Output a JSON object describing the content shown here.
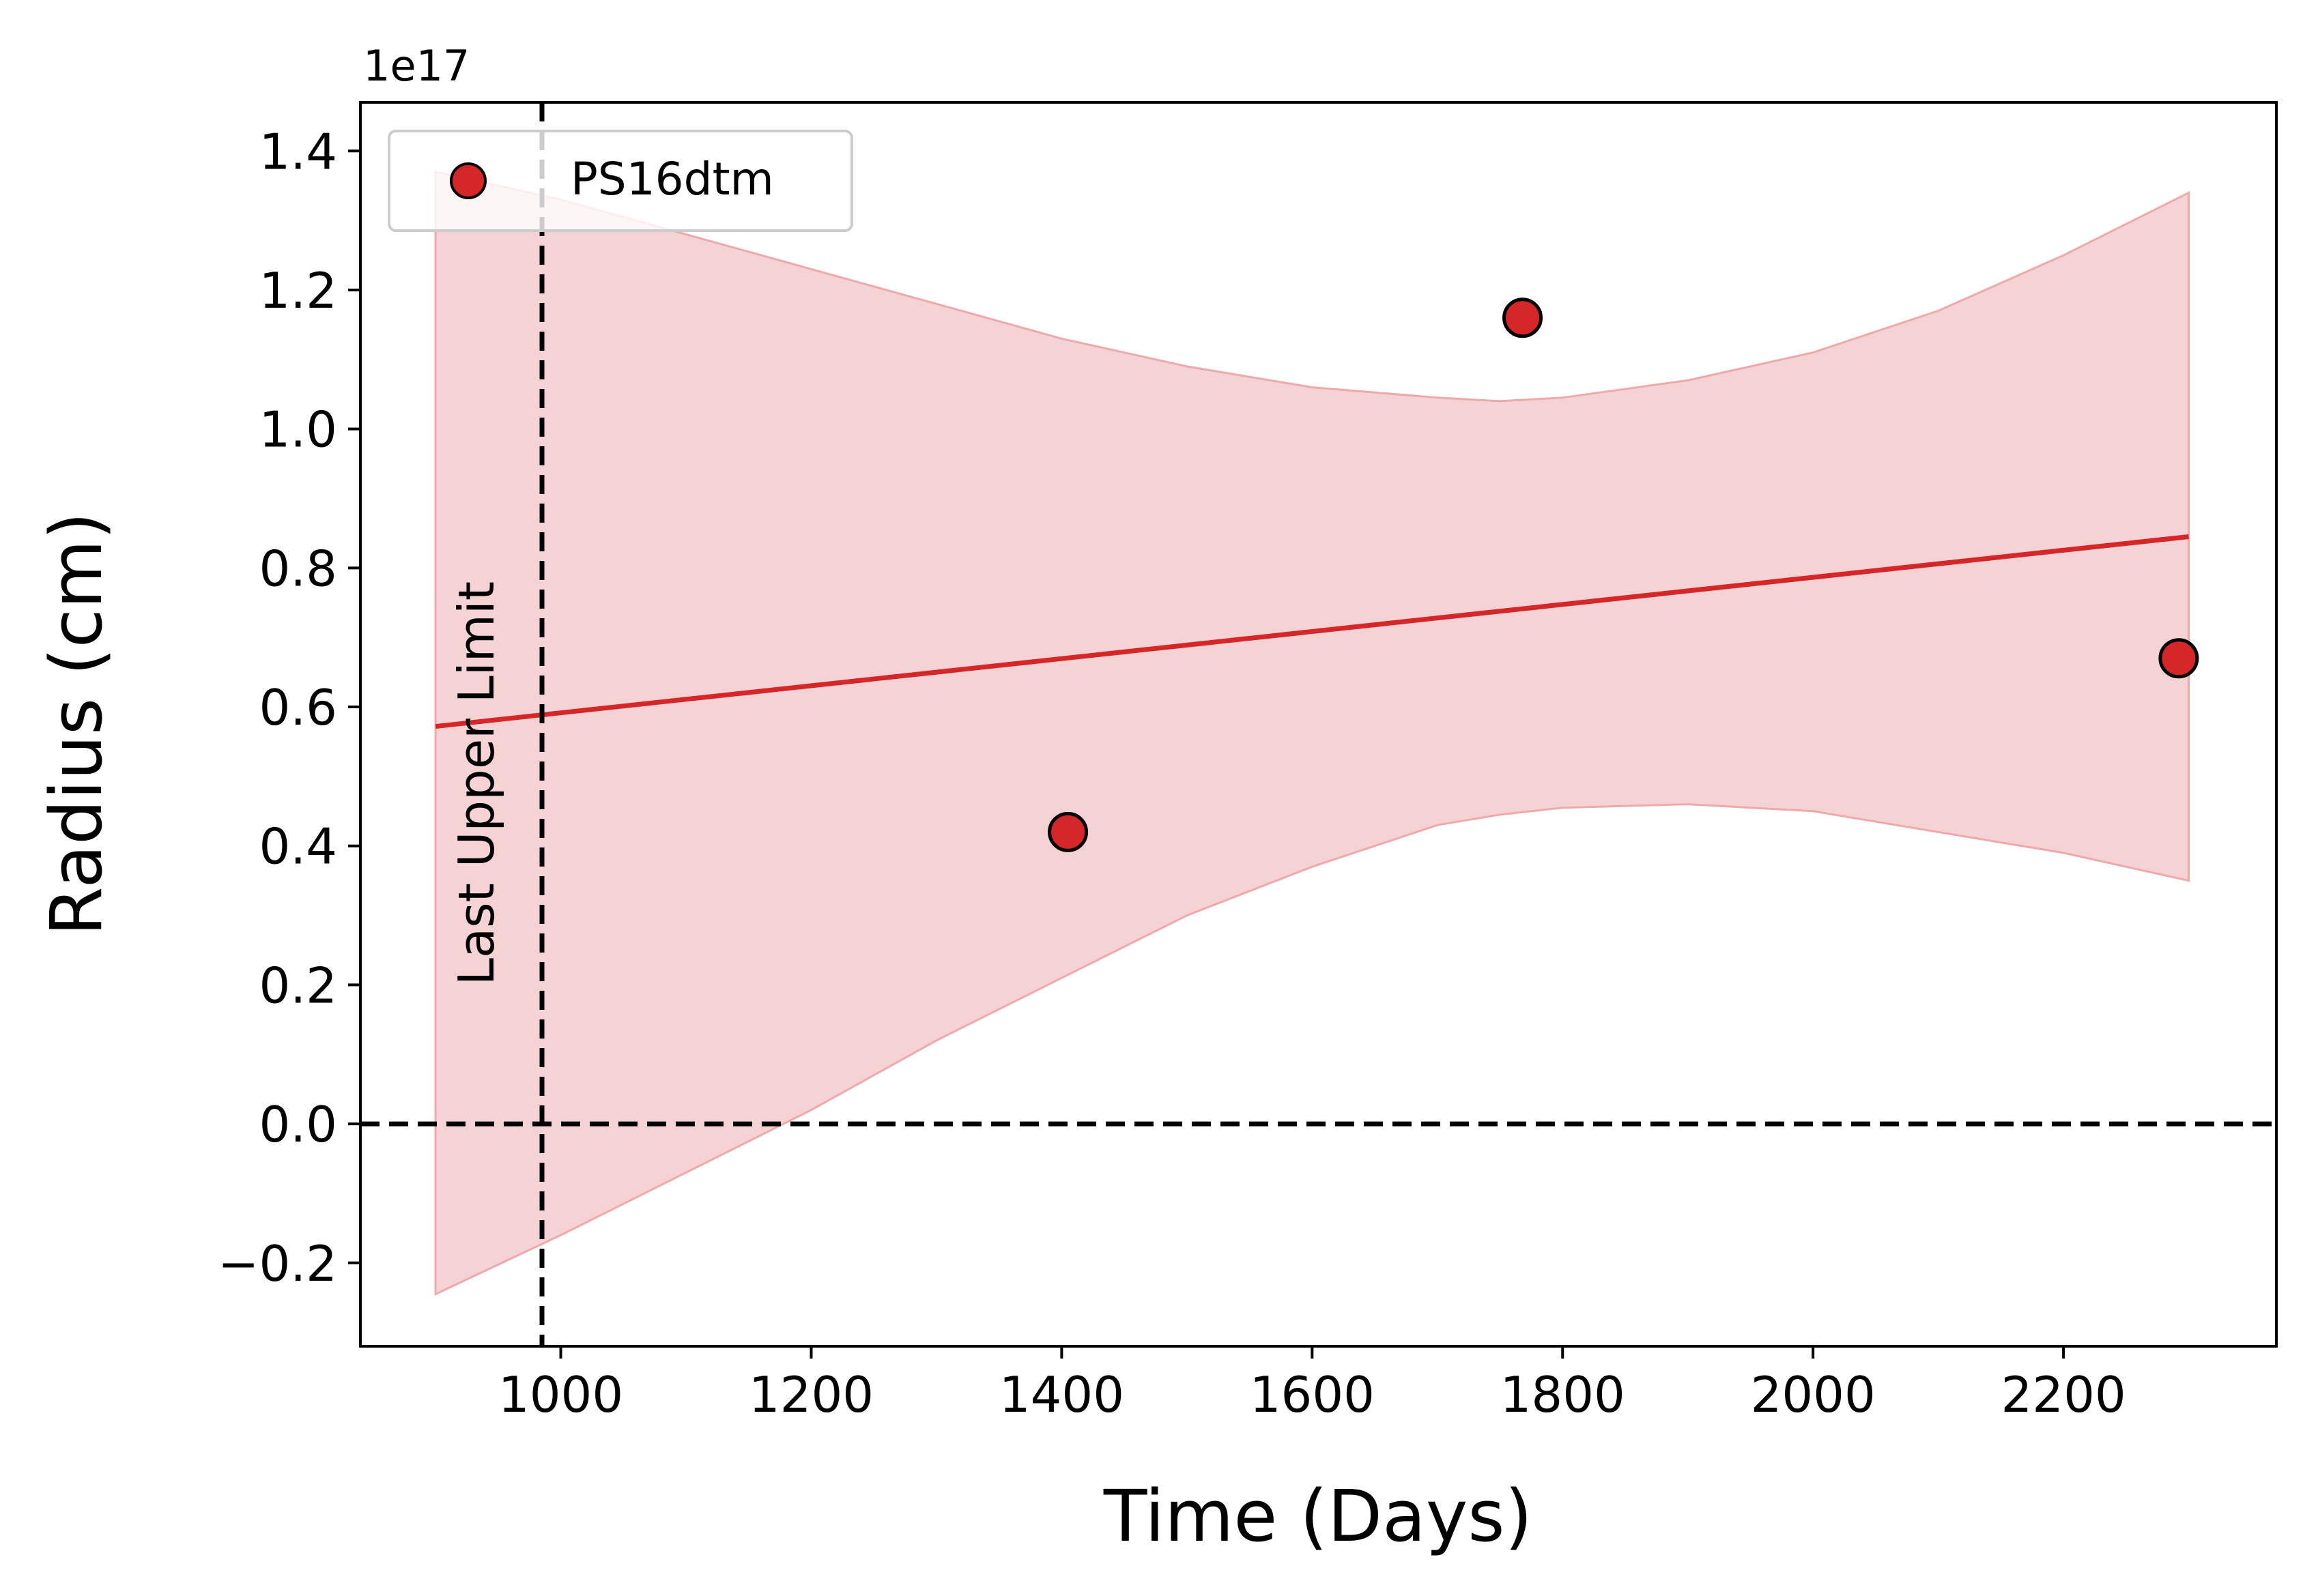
{
  "chart_data": {
    "type": "scatter",
    "xlabel": "Time (Days)",
    "ylabel": "Radius (cm)",
    "y_offset_label": "1e17",
    "xlim": [
      840,
      2370
    ],
    "ylim": [
      -0.32,
      1.47
    ],
    "y_scale_factor": 1e+17,
    "xticks": [
      {
        "value": 1000,
        "label": "1000"
      },
      {
        "value": 1200,
        "label": "1200"
      },
      {
        "value": 1400,
        "label": "1400"
      },
      {
        "value": 1600,
        "label": "1600"
      },
      {
        "value": 1800,
        "label": "1800"
      },
      {
        "value": 2000,
        "label": "2000"
      },
      {
        "value": 2200,
        "label": "2200"
      }
    ],
    "yticks": [
      {
        "value": -0.2,
        "label": "−0.2"
      },
      {
        "value": 0.0,
        "label": "0.0"
      },
      {
        "value": 0.2,
        "label": "0.2"
      },
      {
        "value": 0.4,
        "label": "0.4"
      },
      {
        "value": 0.6,
        "label": "0.6"
      },
      {
        "value": 0.8,
        "label": "0.8"
      },
      {
        "value": 1.0,
        "label": "1.0"
      },
      {
        "value": 1.2,
        "label": "1.2"
      },
      {
        "value": 1.4,
        "label": "1.4"
      }
    ],
    "series": [
      {
        "name": "PS16dtm",
        "x": [
          1405,
          1768,
          2292
        ],
        "y": [
          0.42,
          1.16,
          0.67
        ]
      }
    ],
    "fit_line": {
      "x": [
        900,
        2300
      ],
      "y": [
        0.572,
        0.845
      ]
    },
    "confidence_band": {
      "x": [
        900,
        1000,
        1100,
        1200,
        1300,
        1400,
        1500,
        1600,
        1700,
        1750,
        1800,
        1900,
        2000,
        2100,
        2200,
        2300
      ],
      "upper": [
        1.37,
        1.33,
        1.28,
        1.23,
        1.18,
        1.13,
        1.09,
        1.06,
        1.045,
        1.04,
        1.045,
        1.07,
        1.11,
        1.17,
        1.25,
        1.34
      ],
      "lower": [
        -0.245,
        -0.16,
        -0.07,
        0.02,
        0.12,
        0.21,
        0.3,
        0.37,
        0.43,
        0.445,
        0.455,
        0.46,
        0.45,
        0.42,
        0.39,
        0.35
      ]
    },
    "reference_lines": {
      "horizontal_y": 0.0,
      "vertical_x": 985
    },
    "annotation": "Last Upper Limit",
    "legend_position": "upper-left",
    "grid": false,
    "colors": {
      "series": "#d62728",
      "band": "#f5d3d4",
      "band_edge": "#eeaaaa",
      "marker_edge": "#000000",
      "reference": "#000000"
    }
  }
}
